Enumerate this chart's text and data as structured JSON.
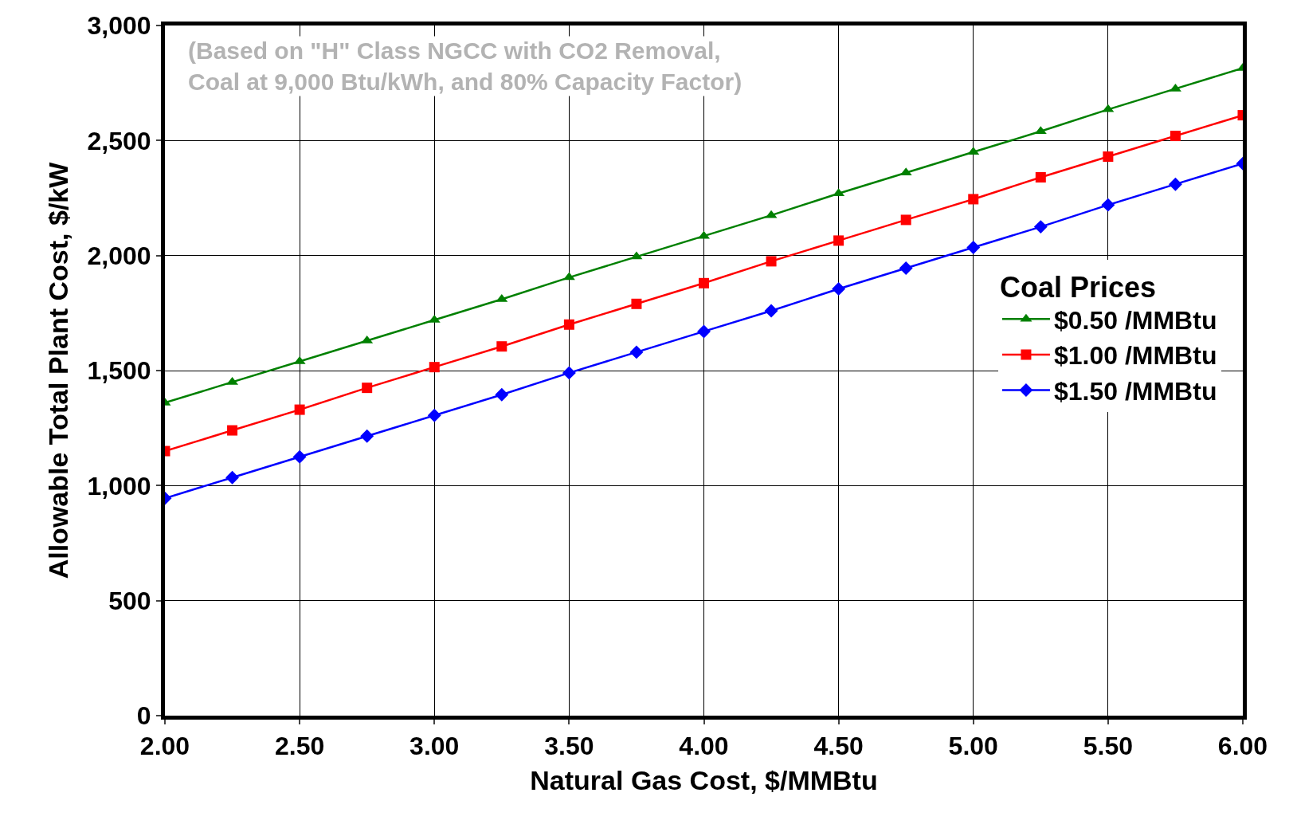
{
  "chart_data": {
    "type": "line",
    "xlabel": "Natural Gas Cost, $/MMBtu",
    "ylabel": "Allowable Total Plant Cost, $/kW",
    "legend_title": "Coal Prices",
    "legend": "right",
    "annotations": [
      "(Based on \"H\" Class NGCC with CO2 Removal,\nCoal at 9,000 Btu/kWh, and 80% Capacity Factor)"
    ],
    "x": [
      2.0,
      2.25,
      2.5,
      2.75,
      3.0,
      3.25,
      3.5,
      3.75,
      4.0,
      4.25,
      4.5,
      4.75,
      5.0,
      5.25,
      5.5,
      5.75,
      6.0
    ],
    "series": [
      {
        "name": "$0.50 /MMBtu",
        "color": "#008000",
        "marker": "triangle",
        "values": [
          1360,
          1450,
          1540,
          1630,
          1720,
          1810,
          1905,
          1995,
          2085,
          2175,
          2270,
          2360,
          2450,
          2540,
          2635,
          2725,
          2815
        ]
      },
      {
        "name": "$1.00 /MMBtu",
        "color": "#ff0000",
        "marker": "square",
        "values": [
          1150,
          1240,
          1330,
          1425,
          1515,
          1605,
          1700,
          1790,
          1880,
          1975,
          2065,
          2155,
          2245,
          2340,
          2430,
          2520,
          2610
        ]
      },
      {
        "name": "$1.50 /MMBtu",
        "color": "#0000ff",
        "marker": "diamond",
        "values": [
          945,
          1035,
          1125,
          1215,
          1305,
          1395,
          1490,
          1580,
          1670,
          1760,
          1855,
          1945,
          2035,
          2125,
          2220,
          2310,
          2400
        ]
      }
    ],
    "xlim": [
      2.0,
      6.0
    ],
    "xticks": [
      {
        "value": 2,
        "label": "2.00"
      },
      {
        "value": 2.5,
        "label": "2.50"
      },
      {
        "value": 3,
        "label": "3.00"
      },
      {
        "value": 3.5,
        "label": "3.50"
      },
      {
        "value": 4,
        "label": "4.00"
      },
      {
        "value": 4.5,
        "label": "4.50"
      },
      {
        "value": 5,
        "label": "5.00"
      },
      {
        "value": 5.5,
        "label": "5.50"
      },
      {
        "value": 6,
        "label": "6.00"
      }
    ],
    "ylim": [
      0,
      3000
    ],
    "yticks": [
      0,
      500,
      {
        "value": 1000,
        "label": "1,000"
      },
      {
        "value": 1500,
        "label": "1,500"
      },
      {
        "value": 2000,
        "label": "2,000"
      },
      {
        "value": 2500,
        "label": "2,500"
      },
      {
        "value": 3000,
        "label": "3,000"
      }
    ],
    "grid": true,
    "line_style": "solid"
  }
}
